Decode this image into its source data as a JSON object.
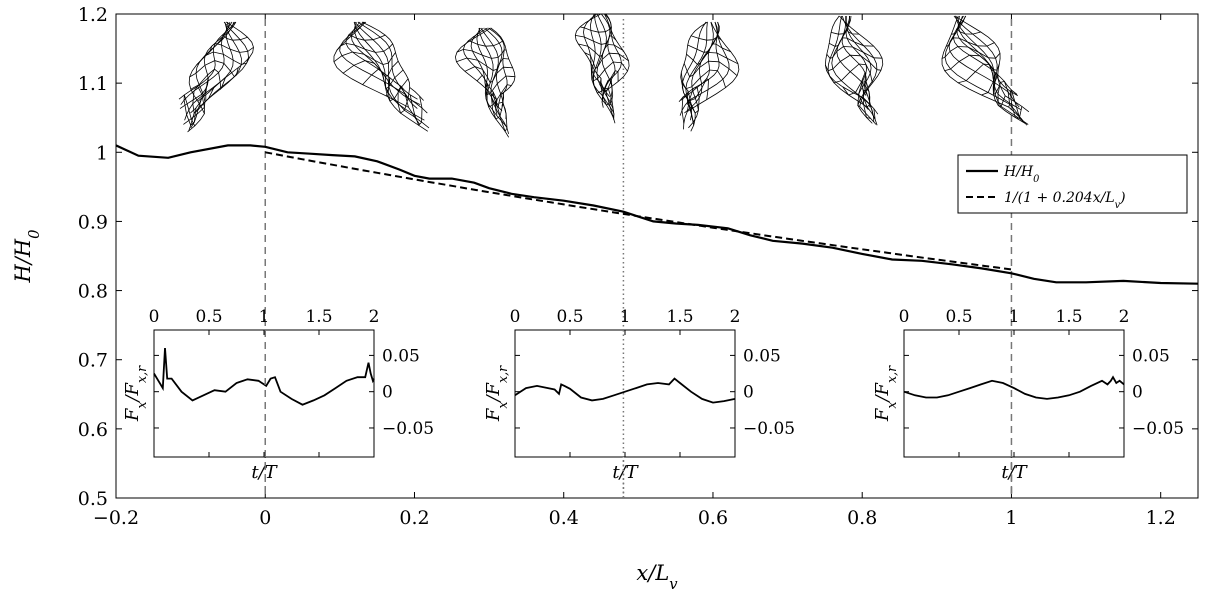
{
  "chart_data": {
    "type": "line",
    "xlabel": "x/L_v",
    "ylabel": "H/H_0",
    "xlim": [
      -0.2,
      1.25
    ],
    "ylim": [
      0.5,
      1.2
    ],
    "x_ticks": [
      "−0.2",
      "0",
      "0.2",
      "0.4",
      "0.6",
      "0.8",
      "1",
      "1.2"
    ],
    "y_ticks": [
      "0.5",
      "0.6",
      "0.7",
      "0.8",
      "0.9",
      "1",
      "1.1",
      "1.2"
    ],
    "grid": false,
    "legend_position": "right",
    "series": [
      {
        "name": "H/H_0",
        "style": "solid",
        "x": [
          -0.2,
          -0.17,
          -0.13,
          -0.1,
          -0.05,
          -0.02,
          0,
          0.03,
          0.06,
          0.09,
          0.12,
          0.15,
          0.18,
          0.2,
          0.22,
          0.25,
          0.28,
          0.3,
          0.33,
          0.36,
          0.4,
          0.44,
          0.48,
          0.5,
          0.52,
          0.55,
          0.58,
          0.62,
          0.65,
          0.68,
          0.72,
          0.76,
          0.8,
          0.84,
          0.88,
          0.92,
          0.96,
          1.0,
          1.03,
          1.06,
          1.1,
          1.15,
          1.2,
          1.25
        ],
        "y": [
          1.01,
          0.995,
          0.992,
          1.0,
          1.01,
          1.01,
          1.008,
          1.0,
          0.998,
          0.996,
          0.994,
          0.987,
          0.975,
          0.966,
          0.962,
          0.962,
          0.956,
          0.948,
          0.94,
          0.935,
          0.93,
          0.923,
          0.914,
          0.907,
          0.9,
          0.897,
          0.895,
          0.89,
          0.88,
          0.872,
          0.868,
          0.862,
          0.853,
          0.845,
          0.843,
          0.838,
          0.832,
          0.825,
          0.817,
          0.812,
          0.812,
          0.814,
          0.811,
          0.81
        ]
      },
      {
        "name": "1/(1 + 0.204x/L_v)",
        "style": "dashed",
        "formula_coeff": 0.204,
        "x_range": [
          0,
          1
        ]
      }
    ],
    "vlines": [
      {
        "x": 0,
        "style": "dashed"
      },
      {
        "x": 0.48,
        "style": "dotted"
      },
      {
        "x": 1,
        "style": "dashed"
      }
    ],
    "insets": [
      {
        "xlabel": "t/T",
        "ylabel": "F_x/F_{x,r}",
        "xlim": [
          0,
          2
        ],
        "ylim": [
          -0.09,
          0.085
        ],
        "x_ticks": [
          "0",
          "0.5",
          "1",
          "1.5",
          "2"
        ],
        "y_ticks": [
          "0.05",
          "0",
          "−0.05"
        ],
        "t": [
          0,
          0.04,
          0.08,
          0.1,
          0.12,
          0.16,
          0.25,
          0.35,
          0.45,
          0.55,
          0.65,
          0.75,
          0.85,
          0.95,
          1.0,
          1.02,
          1.06,
          1.1,
          1.15,
          1.25,
          1.35,
          1.45,
          1.55,
          1.65,
          1.75,
          1.85,
          1.92,
          1.95,
          1.97,
          1.99,
          2.0
        ],
        "f": [
          0.025,
          0.015,
          0.005,
          0.06,
          0.018,
          0.018,
          0.0,
          -0.012,
          -0.005,
          0.002,
          0.0,
          0.012,
          0.017,
          0.015,
          0.01,
          0.008,
          0.018,
          0.02,
          0.0,
          -0.01,
          -0.018,
          -0.012,
          -0.005,
          0.005,
          0.015,
          0.02,
          0.02,
          0.04,
          0.025,
          0.015,
          0.018
        ]
      },
      {
        "xlabel": "t/T",
        "ylabel": "F_x/F_{x,r}",
        "xlim": [
          0,
          2
        ],
        "ylim": [
          -0.09,
          0.085
        ],
        "x_ticks": [
          "0",
          "0.5",
          "1",
          "1.5",
          "2"
        ],
        "y_ticks": [
          "0.05",
          "0",
          "−0.05"
        ],
        "t": [
          0,
          0.1,
          0.2,
          0.3,
          0.36,
          0.4,
          0.42,
          0.45,
          0.5,
          0.6,
          0.7,
          0.8,
          0.9,
          1.0,
          1.1,
          1.2,
          1.3,
          1.4,
          1.45,
          1.5,
          1.6,
          1.7,
          1.8,
          1.9,
          2.0
        ],
        "f": [
          -0.005,
          0.005,
          0.008,
          0.005,
          0.003,
          -0.003,
          0.01,
          0.008,
          0.004,
          -0.008,
          -0.012,
          -0.01,
          -0.005,
          0.0,
          0.005,
          0.01,
          0.012,
          0.01,
          0.018,
          0.012,
          0.0,
          -0.01,
          -0.015,
          -0.013,
          -0.01
        ]
      },
      {
        "xlabel": "t/T",
        "ylabel": "F_x/F_{x,r}",
        "xlim": [
          0,
          2
        ],
        "ylim": [
          -0.09,
          0.085
        ],
        "x_ticks": [
          "0",
          "0.5",
          "1",
          "1.5",
          "2"
        ],
        "y_ticks": [
          "0.05",
          "0",
          "−0.05"
        ],
        "t": [
          0,
          0.1,
          0.2,
          0.3,
          0.4,
          0.5,
          0.6,
          0.7,
          0.8,
          0.9,
          1.0,
          1.1,
          1.2,
          1.3,
          1.4,
          1.5,
          1.6,
          1.7,
          1.8,
          1.85,
          1.88,
          1.9,
          1.93,
          1.96,
          2.0
        ],
        "f": [
          0.0,
          -0.005,
          -0.008,
          -0.008,
          -0.005,
          0.0,
          0.005,
          0.01,
          0.015,
          0.012,
          0.005,
          -0.003,
          -0.008,
          -0.01,
          -0.008,
          -0.005,
          0.0,
          0.008,
          0.015,
          0.01,
          0.015,
          0.02,
          0.012,
          0.015,
          0.01
        ]
      }
    ]
  }
}
